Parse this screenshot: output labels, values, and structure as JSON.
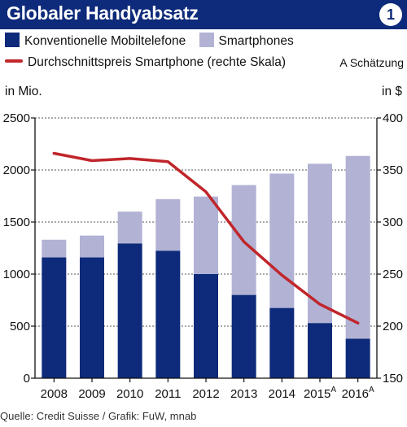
{
  "header": {
    "title": "Globaler Handyabsatz",
    "badge": "1"
  },
  "legend": {
    "items": [
      {
        "label": "Konventionelle Mobiltelefone",
        "color": "#0e2a7a"
      },
      {
        "label": "Smartphones",
        "color": "#b1b2d4"
      }
    ],
    "line_label": "Durchschnittspreis Smartphone (rechte Skala)",
    "line_color": "#c0262b",
    "note": "A Schätzung"
  },
  "units": {
    "left": "in Mio.",
    "right": "in $"
  },
  "footer": {
    "source": "Quelle: Credit Suisse / Grafik: FuW, mnab"
  },
  "chart_data": {
    "type": "bar",
    "stacked": true,
    "categories": [
      "2008",
      "2009",
      "2010",
      "2011",
      "2012",
      "2013",
      "2014",
      "2015A",
      "2016A"
    ],
    "series": [
      {
        "name": "Konventionelle Mobiltelefone",
        "values": [
          1160,
          1160,
          1295,
          1225,
          1000,
          800,
          675,
          530,
          380
        ],
        "color": "#0e2a7a"
      },
      {
        "name": "Smartphones",
        "values": [
          170,
          210,
          305,
          495,
          745,
          1055,
          1290,
          1530,
          1755
        ],
        "color": "#b1b2d4"
      }
    ],
    "line": {
      "name": "Durchschnittspreis Smartphone (rechte Skala)",
      "axis": "right",
      "values": [
        366,
        359,
        361,
        358,
        329,
        281,
        249,
        221,
        203
      ],
      "color": "#c0262b"
    },
    "y_left": {
      "label": "in Mio.",
      "min": 0,
      "max": 2500,
      "ticks": [
        0,
        500,
        1000,
        1500,
        2000,
        2500
      ]
    },
    "y_right": {
      "label": "in $",
      "min": 150,
      "max": 400,
      "ticks": [
        150,
        200,
        250,
        300,
        350,
        400
      ]
    },
    "grid": "horizontal"
  }
}
